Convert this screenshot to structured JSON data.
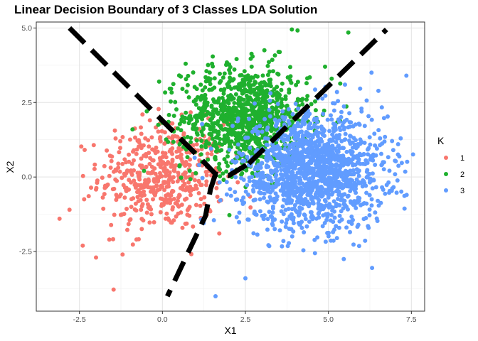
{
  "chart_data": {
    "type": "scatter",
    "title": "Linear Decision Boundary of 3 Classes LDA Solution",
    "xlabel": "X1",
    "ylabel": "X2",
    "xlim": [
      -3.8,
      7.9
    ],
    "ylim": [
      -4.5,
      5.2
    ],
    "x_ticks": [
      -2.5,
      0.0,
      2.5,
      5.0,
      7.5
    ],
    "x_tick_labels": [
      "-2.5",
      "0.0",
      "2.5",
      "5.0",
      "7.5"
    ],
    "y_ticks": [
      -2.5,
      0.0,
      2.5,
      5.0
    ],
    "y_tick_labels": [
      "-2.5",
      "0.0",
      "2.5",
      "5.0"
    ],
    "grid": true,
    "legend": {
      "title": "K",
      "position": "right",
      "entries": [
        {
          "label": "1",
          "color": "#F8766D"
        },
        {
          "label": "2",
          "color": "#1FB02E"
        },
        {
          "label": "3",
          "color": "#619CFF"
        }
      ]
    },
    "series": [
      {
        "name": "1",
        "color": "#F8766D",
        "center": [
          0.0,
          0.0
        ],
        "spread": [
          0.95,
          0.9
        ],
        "count": 500,
        "highlight_points": [
          [
            -3.1,
            -1.4
          ],
          [
            -2.8,
            -1.1
          ],
          [
            -2.4,
            -2.3
          ],
          [
            -2.0,
            -2.7
          ],
          [
            -1.6,
            -2.1
          ],
          [
            -1.2,
            -2.6
          ],
          [
            -0.6,
            2.1
          ],
          [
            0.3,
            1.8
          ]
        ]
      },
      {
        "name": "2",
        "color": "#1FB02E",
        "center": [
          2.5,
          2.0
        ],
        "spread": [
          0.95,
          0.85
        ],
        "count": 1000,
        "highlight_points": [
          [
            3.9,
            4.95
          ],
          [
            5.6,
            4.85
          ],
          [
            3.5,
            4.2
          ],
          [
            4.9,
            3.7
          ],
          [
            0.7,
            3.8
          ],
          [
            -0.1,
            3.2
          ],
          [
            -0.9,
            1.6
          ],
          [
            5.1,
            3.3
          ]
        ]
      },
      {
        "name": "3",
        "color": "#619CFF",
        "center": [
          4.5,
          0.2
        ],
        "spread": [
          1.1,
          0.95
        ],
        "count": 1500,
        "highlight_points": [
          [
            7.35,
            3.4
          ],
          [
            6.3,
            3.5
          ],
          [
            7.1,
            1.1
          ],
          [
            6.6,
            0.4
          ],
          [
            1.6,
            -4.0
          ],
          [
            2.5,
            -3.4
          ],
          [
            6.0,
            2.2
          ],
          [
            5.5,
            3.1
          ]
        ]
      }
    ],
    "boundaries": [
      {
        "name": "boundary-1-2",
        "points": [
          [
            -2.8,
            5.0
          ],
          [
            1.25,
            0.5
          ],
          [
            1.6,
            0.1
          ],
          [
            2.0,
            0.05
          ],
          [
            2.6,
            0.45
          ]
        ]
      },
      {
        "name": "boundary-2-3",
        "points": [
          [
            2.6,
            0.45
          ],
          [
            6.75,
            4.95
          ]
        ]
      },
      {
        "name": "boundary-1-3",
        "points": [
          [
            1.6,
            0.1
          ],
          [
            1.45,
            -0.4
          ],
          [
            1.3,
            -1.3
          ],
          [
            0.15,
            -4.0
          ]
        ]
      }
    ]
  }
}
